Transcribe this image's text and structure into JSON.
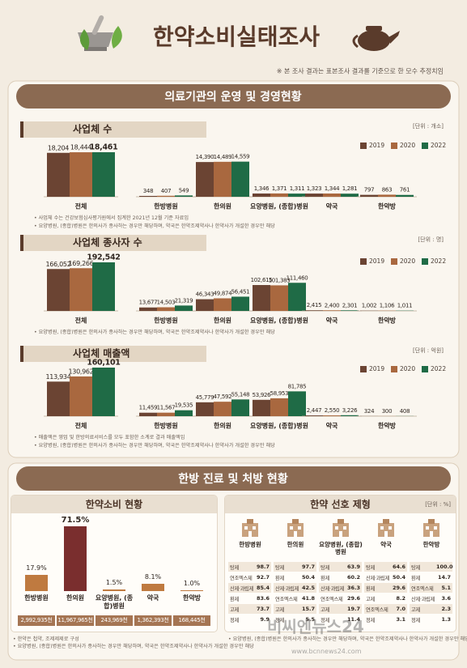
{
  "header": {
    "title": "한약소비실태조사",
    "note": "※ 본 조사 결과는 표본조사 결과를 기준으로 한 모수 추정치임"
  },
  "section1": {
    "title": "의료기관의 운영 및 경영현황"
  },
  "section2": {
    "title": "한방 진료 및 처방 현황"
  },
  "chart_data": [
    {
      "type": "bar",
      "title": "사업체 수",
      "unit": "[단위 : 개소]",
      "categories": [
        "전체",
        "한방병원",
        "한의원",
        "요양병원, (종합)병원",
        "약국",
        "한약방"
      ],
      "series": [
        {
          "name": "2019",
          "color": "#6b4433",
          "values": [
            18204,
            348,
            14390,
            1346,
            1323,
            797
          ],
          "value_labels": [
            "18,204",
            "348",
            "14,390",
            "1,346",
            "1,323",
            "797"
          ]
        },
        {
          "name": "2020",
          "color": "#a9683f",
          "values": [
            18444,
            407,
            14489,
            1371,
            1344,
            863
          ],
          "value_labels": [
            "18,444",
            "407",
            "14,489",
            "1,371",
            "1,344",
            "863"
          ]
        },
        {
          "name": "2022",
          "color": "#1f6b46",
          "values": [
            18461,
            549,
            14559,
            1311,
            1281,
            761
          ],
          "value_labels": [
            "18,461",
            "549",
            "14,559",
            "1,311",
            "1,281",
            "761"
          ]
        }
      ],
      "notes": [
        "• 사업체 수는 건강보험심사평가원에서 집계한 2021년 12월 기준 자료임",
        "• 요양병원, (종합)병원은 한의사가 종사하는 경우만 해당하며, 약국은 한약조제약사나 한약사가 개설한 경우만 해당"
      ]
    },
    {
      "type": "bar",
      "title": "사업체 종사자 수",
      "unit": "[단위 : 명]",
      "categories": [
        "전체",
        "한방병원",
        "한의원",
        "요양병원, (종합)병원",
        "약국",
        "한약방"
      ],
      "series": [
        {
          "name": "2019",
          "color": "#6b4433",
          "values": [
            166052,
            13677,
            46343,
            102615,
            2415,
            1002
          ],
          "value_labels": [
            "166,052",
            "13,677",
            "46,343",
            "102,615",
            "2,415",
            "1,002"
          ]
        },
        {
          "name": "2020",
          "color": "#a9683f",
          "values": [
            169266,
            14503,
            49874,
            101383,
            2400,
            1106
          ],
          "value_labels": [
            "169,266",
            "14,503",
            "49,874",
            "101,383",
            "2,400",
            "1,106"
          ]
        },
        {
          "name": "2022",
          "color": "#1f6b46",
          "values": [
            192542,
            21319,
            56451,
            111460,
            2301,
            1011
          ],
          "value_labels": [
            "192,542",
            "21,319",
            "56,451",
            "111,460",
            "2,301",
            "1,011"
          ]
        }
      ],
      "notes": [
        "• 요양병원, (종합)병원은 한의사가 종사하는 경우만 해당하며, 약국은 한약조제약사나 한약사가 개설한 경우만 해당"
      ]
    },
    {
      "type": "bar",
      "title": "사업체 매출액",
      "unit": "[단위 : 억원]",
      "categories": [
        "전체",
        "한방병원",
        "한의원",
        "요양병원, (종합)병원",
        "약국",
        "한약방"
      ],
      "series": [
        {
          "name": "2019",
          "color": "#6b4433",
          "values": [
            113934,
            11459,
            45779,
            53926,
            2447,
            324
          ],
          "value_labels": [
            "113,934",
            "11,459",
            "45,779",
            "53,926",
            "2,447",
            "324"
          ]
        },
        {
          "name": "2020",
          "color": "#a9683f",
          "values": [
            130962,
            11567,
            47592,
            58953,
            2550,
            300
          ],
          "value_labels": [
            "130,962",
            "11,567",
            "47,592",
            "58,953",
            "2,550",
            "300"
          ]
        },
        {
          "name": "2022",
          "color": "#1f6b46",
          "values": [
            160101,
            19535,
            55148,
            81785,
            3226,
            408
          ],
          "value_labels": [
            "160,101",
            "19,535",
            "55,148",
            "81,785",
            "3,226",
            "408"
          ]
        }
      ],
      "notes": [
        "• 매출액은 영업 및 한방의료서비스를 모두 포함한 소계로 결과 매출액임",
        "• 요양병원, (종합)병원은 한의사가 종사하는 경우만 해당하며, 약국은 한약조제약사나 한약사가 개설한 경우만 해당"
      ]
    },
    {
      "type": "bar",
      "title": "한약소비 현황",
      "categories": [
        "한방병원",
        "한의원",
        "요양병원, (종합)병원",
        "약국",
        "한약방"
      ],
      "values": [
        17.9,
        71.5,
        1.5,
        8.1,
        1.0
      ],
      "value_labels": [
        "17.9%",
        "71.5%",
        "1.5%",
        "8.1%",
        "1.0%"
      ],
      "colors": [
        "#bf7a40",
        "#7a2e2e",
        "#bf7a40",
        "#bf7a40",
        "#bf7a40"
      ],
      "amounts": [
        "2,992,935천",
        "11,967,965천",
        "243,969천",
        "1,362,393천",
        "168,445천"
      ],
      "notes": [
        "• 한약은 첩약, 조제제제로 구성",
        "• 요양병원, (종합)병원은 한의사가 종사하는 경우만 해당하며, 약국은 한약조제약사나 한약사가 개설한 경우만 해당"
      ]
    }
  ],
  "preference": {
    "title": "한약 선호 제형",
    "unit": "[단위 : %]",
    "columns": [
      {
        "name": "한방병원",
        "rows": [
          [
            "탕제",
            "98.7"
          ],
          [
            "연조엑스제",
            "92.7"
          ],
          [
            "산제·과립제",
            "85.4"
          ],
          [
            "환제",
            "83.6"
          ],
          [
            "고제",
            "73.7"
          ],
          [
            "정제",
            "9.9"
          ]
        ]
      },
      {
        "name": "한의원",
        "rows": [
          [
            "탕제",
            "97.7"
          ],
          [
            "환제",
            "50.4"
          ],
          [
            "산제·과립제",
            "42.5"
          ],
          [
            "연조엑스제",
            "41.8"
          ],
          [
            "고제",
            "15.7"
          ],
          [
            "정제",
            "5.5"
          ]
        ]
      },
      {
        "name": "요양병원, (종합)병원",
        "rows": [
          [
            "탕제",
            "63.9"
          ],
          [
            "환제",
            "60.2"
          ],
          [
            "산제·과립제",
            "36.3"
          ],
          [
            "연조엑스제",
            "29.6"
          ],
          [
            "고제",
            "19.7"
          ],
          [
            "정제",
            "11.4"
          ]
        ]
      },
      {
        "name": "약국",
        "rows": [
          [
            "탕제",
            "64.6"
          ],
          [
            "산제·과립제",
            "50.4"
          ],
          [
            "환제",
            "29.6"
          ],
          [
            "고제",
            "8.2"
          ],
          [
            "연조엑스제",
            "7.0"
          ],
          [
            "정제",
            "3.1"
          ]
        ]
      },
      {
        "name": "한약방",
        "rows": [
          [
            "탕제",
            "100.0"
          ],
          [
            "환제",
            "14.7"
          ],
          [
            "연조엑스제",
            "5.1"
          ],
          [
            "산제·과립제",
            "3.6"
          ],
          [
            "고제",
            "2.3"
          ],
          [
            "정제",
            "1.3"
          ]
        ]
      }
    ],
    "note": "• 요양병원, (종합)병원은 한의사가 종사하는 경우만 해당하며, 약국은 한약조제약사나 한약사가 개설한 경우만 해당"
  },
  "watermark": {
    "name": "비씨엔뉴스24",
    "url": "www.bcnnews24.com"
  }
}
